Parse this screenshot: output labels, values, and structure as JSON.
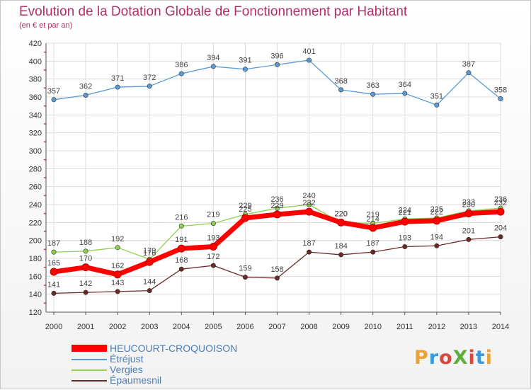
{
  "title": "Evolution de la Dotation Globale de Fonctionnement par Habitant",
  "subtitle": "(en € et par an)",
  "logo": {
    "text": "ProXiti",
    "colors": [
      "#e8a33a",
      "#3a9ad9",
      "#d8483a",
      "#5fae3a",
      "#d8483a",
      "#3a9ad9",
      "#e8a33a"
    ]
  },
  "chart_data": {
    "type": "line",
    "x": [
      2000,
      2001,
      2002,
      2003,
      2004,
      2005,
      2006,
      2007,
      2008,
      2009,
      2010,
      2011,
      2012,
      2013,
      2014
    ],
    "ylim": [
      120,
      420
    ],
    "yticks": [
      120,
      140,
      160,
      180,
      200,
      220,
      240,
      260,
      280,
      300,
      320,
      340,
      360,
      380,
      400,
      420
    ],
    "grid": true,
    "legend_position": "bottom-left",
    "series": [
      {
        "name": "Étréjust",
        "color": "#5b9bd5",
        "values": [
          357,
          362,
          371,
          372,
          386,
          394,
          391,
          396,
          401,
          368,
          363,
          364,
          351,
          387,
          358
        ]
      },
      {
        "name": "Vergies",
        "color": "#8fd14f",
        "values": [
          187,
          188,
          192,
          179,
          216,
          219,
          229,
          236,
          240,
          220,
          219,
          224,
          225,
          233,
          236
        ]
      },
      {
        "name": "Épaumesnil",
        "color": "#6b2a2a",
        "values": [
          141,
          142,
          143,
          144,
          168,
          172,
          159,
          158,
          187,
          184,
          187,
          193,
          194,
          201,
          204
        ]
      },
      {
        "name": "HEUCOURT-CROQUOISON",
        "color": "#ff0000",
        "values": [
          165,
          170,
          162,
          176,
          191,
          193,
          225,
          229,
          232,
          220,
          214,
          221,
          222,
          230,
          232
        ]
      }
    ]
  }
}
